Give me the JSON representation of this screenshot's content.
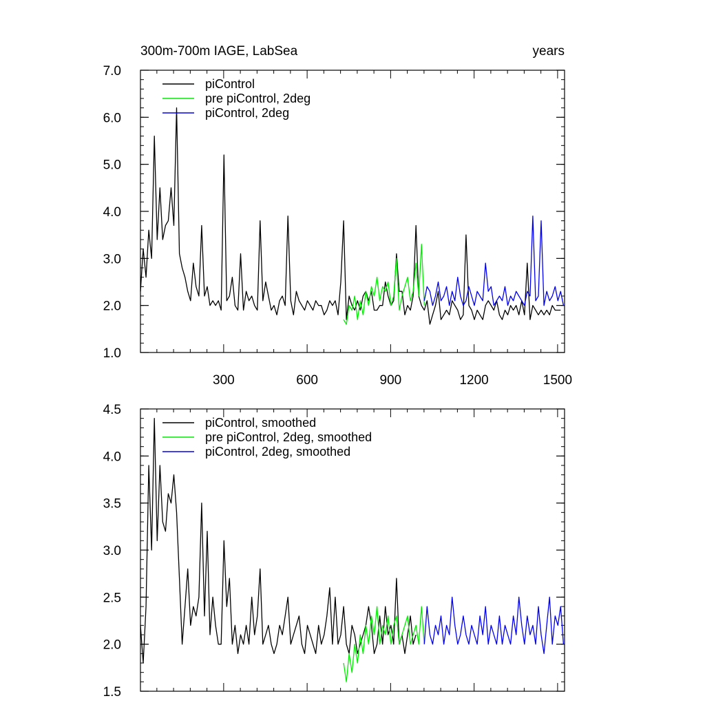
{
  "header": {
    "left_title": "300m-700m IAGE, LabSea",
    "right_title": "years"
  },
  "chart_data": [
    {
      "type": "line",
      "title": "300m-700m IAGE, LabSea",
      "right_label": "years",
      "xlim": [
        1,
        1525
      ],
      "ylim": [
        1.0,
        7.0
      ],
      "yticks": [
        "1.0",
        "2.0",
        "3.0",
        "4.0",
        "5.0",
        "6.0",
        "7.0"
      ],
      "xticks": [
        "300",
        "600",
        "900",
        "1200",
        "1500"
      ],
      "legend_position": "top-left",
      "grid": false,
      "legend": [
        "piControl",
        "pre piControl, 2deg",
        "piControl, 2deg"
      ],
      "series": [
        {
          "name": "piControl",
          "color": "#000000",
          "x_start": 1,
          "x_step": 10,
          "values": [
            2.3,
            3.2,
            2.6,
            3.6,
            3.0,
            5.6,
            3.4,
            4.5,
            3.4,
            3.7,
            3.8,
            4.5,
            3.7,
            6.2,
            3.1,
            2.8,
            2.6,
            2.3,
            2.1,
            2.9,
            2.4,
            2.2,
            3.7,
            2.2,
            2.4,
            2.0,
            2.1,
            2.0,
            2.1,
            1.9,
            5.2,
            2.1,
            2.2,
            2.6,
            2.0,
            1.9,
            3.1,
            1.9,
            2.3,
            2.1,
            2.2,
            2.0,
            1.9,
            3.8,
            2.1,
            2.5,
            2.2,
            1.9,
            2.0,
            1.8,
            2.1,
            2.2,
            2.0,
            3.9,
            2.1,
            1.8,
            2.3,
            2.1,
            2.0,
            1.9,
            2.1,
            2.0,
            1.9,
            2.1,
            2.0,
            2.0,
            1.8,
            1.9,
            2.1,
            2.0,
            2.1,
            1.8,
            2.5,
            3.8,
            1.7,
            2.2,
            2.0,
            1.9,
            2.1,
            1.9,
            2.2,
            2.3,
            2.1,
            2.3,
            1.9,
            1.9,
            2.0,
            2.0,
            2.5,
            2.2,
            2.0,
            2.1,
            3.1,
            2.3,
            2.3,
            1.8,
            2.0,
            1.9,
            2.2,
            3.7,
            2.2,
            2.0,
            1.9,
            2.1,
            1.6,
            1.8,
            2.0,
            2.3,
            1.7,
            1.8,
            1.9,
            1.8,
            2.1,
            2.0,
            1.9,
            1.7,
            1.8,
            3.5,
            2.0,
            1.9,
            1.7,
            1.9,
            1.8,
            1.7,
            2.0,
            2.1,
            2.0,
            1.9,
            2.1,
            1.8,
            1.7,
            1.9,
            1.8,
            2.0,
            1.9,
            2.0,
            1.8,
            2.1,
            1.8,
            2.9,
            1.7,
            2.0,
            1.9,
            1.8,
            1.9,
            1.8,
            1.9,
            1.8,
            2.0,
            1.9,
            1.9,
            1.9
          ]
        },
        {
          "name": "pre piControl, 2deg",
          "color": "#00ee00",
          "x_start": 731,
          "x_step": 10,
          "values": [
            1.7,
            1.6,
            2.0,
            1.9,
            2.2,
            1.7,
            2.1,
            1.8,
            2.3,
            2.0,
            2.4,
            2.2,
            2.6,
            2.1,
            2.4,
            2.3,
            2.5,
            2.0,
            2.2,
            3.0,
            1.9,
            2.2,
            2.4,
            2.6,
            2.1,
            2.3,
            2.9,
            2.2,
            3.3,
            2.0
          ]
        },
        {
          "name": "piControl, 2deg",
          "color": "#0000ee",
          "x_start": 1021,
          "x_step": 10,
          "values": [
            2.1,
            2.4,
            2.3,
            2.0,
            2.2,
            2.5,
            2.1,
            2.2,
            2.4,
            2.0,
            2.3,
            2.1,
            2.6,
            2.2,
            2.0,
            2.1,
            2.4,
            2.2,
            2.0,
            2.3,
            2.2,
            2.1,
            2.9,
            2.3,
            2.4,
            2.0,
            2.1,
            2.2,
            2.1,
            2.4,
            2.0,
            2.2,
            2.1,
            2.3,
            2.2,
            2.1,
            2.0,
            2.3,
            2.2,
            3.9,
            2.1,
            2.2,
            3.8,
            2.0,
            2.3,
            2.1,
            2.2,
            2.4,
            2.1,
            2.3,
            2.0
          ]
        }
      ]
    },
    {
      "type": "line",
      "title": "",
      "xlim": [
        1,
        1525
      ],
      "ylim": [
        1.5,
        4.5
      ],
      "yticks": [
        "1.5",
        "2.0",
        "2.5",
        "3.0",
        "3.5",
        "4.0",
        "4.5"
      ],
      "xticks": [],
      "legend_position": "top-left",
      "grid": false,
      "legend": [
        "piControl, smoothed",
        "pre piControl, 2deg, smoothed",
        "piControl, 2deg, smoothed"
      ],
      "series": [
        {
          "name": "piControl, smoothed",
          "color": "#000000",
          "x_start": 1,
          "x_step": 10,
          "values": [
            2.2,
            1.8,
            2.4,
            3.9,
            3.0,
            4.4,
            3.1,
            3.9,
            3.3,
            3.2,
            3.6,
            3.5,
            3.8,
            3.4,
            2.7,
            2.0,
            2.4,
            2.8,
            2.2,
            2.4,
            2.3,
            2.5,
            3.5,
            2.3,
            3.2,
            2.1,
            2.5,
            2.2,
            2.0,
            2.0,
            3.1,
            2.4,
            2.7,
            2.0,
            2.2,
            1.9,
            2.1,
            2.0,
            2.2,
            2.0,
            2.5,
            2.1,
            2.3,
            2.8,
            2.0,
            2.1,
            2.2,
            2.0,
            1.9,
            2.0,
            2.2,
            2.1,
            2.3,
            2.5,
            2.0,
            2.1,
            2.2,
            2.3,
            2.0,
            1.9,
            2.2,
            2.1,
            2.0,
            1.9,
            2.2,
            2.0,
            2.1,
            2.3,
            2.6,
            2.0,
            2.5,
            2.0,
            2.1,
            2.4,
            2.0,
            1.9,
            2.2,
            2.1,
            1.9,
            2.0,
            2.1,
            2.2,
            2.4,
            2.2,
            1.9,
            2.0,
            2.3,
            2.0,
            2.4,
            2.1,
            2.2,
            2.0,
            2.7,
            2.0,
            2.1,
            1.9,
            2.1,
            2.3,
            2.0,
            2.1
          ]
        },
        {
          "name": "pre piControl, 2deg, smoothed",
          "color": "#00ee00",
          "x_start": 731,
          "x_step": 10,
          "values": [
            1.8,
            1.6,
            1.9,
            1.7,
            2.0,
            1.8,
            2.1,
            1.9,
            2.2,
            2.0,
            2.3,
            2.1,
            2.4,
            2.0,
            2.2,
            2.1,
            2.3,
            2.0,
            2.2,
            2.3,
            2.0,
            2.1,
            2.2,
            2.3,
            2.0,
            2.1,
            2.2,
            2.0,
            2.4,
            2.0
          ]
        },
        {
          "name": "piControl, 2deg, smoothed",
          "color": "#0000ee",
          "x_start": 1021,
          "x_step": 10,
          "values": [
            2.0,
            2.4,
            2.1,
            2.0,
            2.2,
            2.1,
            2.3,
            2.0,
            2.2,
            2.1,
            2.5,
            2.2,
            2.0,
            2.1,
            2.3,
            2.1,
            2.0,
            2.2,
            2.1,
            2.0,
            2.3,
            2.1,
            2.4,
            2.0,
            2.2,
            2.1,
            2.0,
            2.3,
            2.0,
            2.2,
            2.1,
            2.0,
            2.3,
            2.1,
            2.5,
            2.2,
            2.0,
            2.3,
            2.1,
            2.2,
            2.0,
            2.4,
            2.1,
            1.9,
            2.2,
            2.5,
            2.0,
            2.3,
            2.2,
            2.4,
            2.0
          ]
        }
      ]
    }
  ]
}
